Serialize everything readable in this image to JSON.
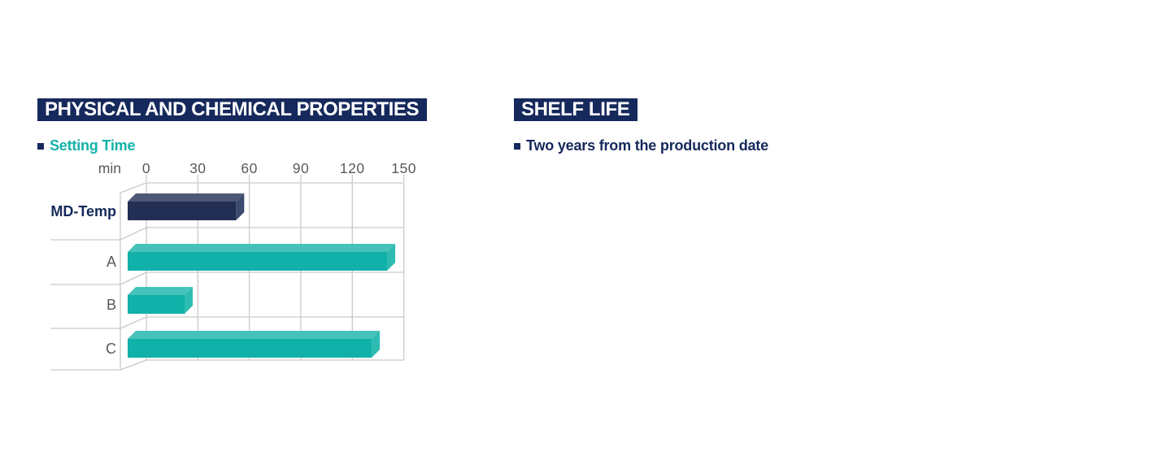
{
  "colors": {
    "page_bg": "#ffffff",
    "navy": "#16295c",
    "teal": "#13b2a8",
    "header_text": "#ffffff",
    "axis_text": "#58595b",
    "grid_line": "#c9c9ca",
    "bar_navy_front": "#232e55",
    "bar_navy_top": "#4d5878",
    "bar_navy_side": "#3d4a70",
    "bar_teal_front": "#10b1a8",
    "bar_teal_top": "#45c2ba",
    "bar_teal_side": "#2ebcb2"
  },
  "sections": {
    "properties": {
      "header": "PHYSICAL AND CHEMICAL PROPERTIES",
      "bullet": "Setting Time"
    },
    "shelf_life": {
      "header": "SHELF LIFE",
      "bullet": "Two years from the production date"
    }
  },
  "chart_data": {
    "type": "bar",
    "orientation": "horizontal",
    "style": "3d",
    "title": "Setting Time",
    "unit_label": "min",
    "categories": [
      "MD-Temp",
      "A",
      "B",
      "C"
    ],
    "values": [
      57,
      145,
      27,
      136
    ],
    "xticks": [
      0,
      30,
      60,
      90,
      120,
      150
    ],
    "xlim": [
      0,
      150
    ],
    "grid": true,
    "legend": "none",
    "highlight_category": "MD-Temp",
    "series_colors": [
      "navy",
      "teal",
      "teal",
      "teal"
    ]
  }
}
